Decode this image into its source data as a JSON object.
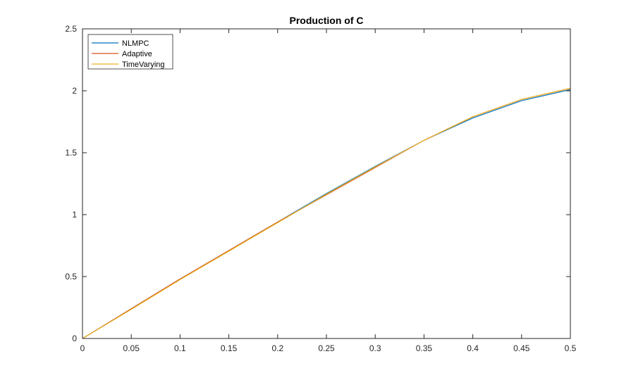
{
  "chart_data": {
    "type": "line",
    "title": "Production of C",
    "xlabel": "",
    "ylabel": "",
    "xlim": [
      0,
      0.5
    ],
    "ylim": [
      0,
      2.5
    ],
    "xticks": [
      0,
      0.05,
      0.1,
      0.15,
      0.2,
      0.25,
      0.3,
      0.35,
      0.4,
      0.45,
      0.5
    ],
    "xtick_labels": [
      "0",
      "0.05",
      "0.1",
      "0.15",
      "0.2",
      "0.25",
      "0.3",
      "0.35",
      "0.4",
      "0.45",
      "0.5"
    ],
    "yticks": [
      0,
      0.5,
      1,
      1.5,
      2,
      2.5
    ],
    "ytick_labels": [
      "0",
      "0.5",
      "1",
      "1.5",
      "2",
      "2.5"
    ],
    "grid": false,
    "legend_position": "top-left",
    "x": [
      0,
      0.05,
      0.1,
      0.15,
      0.2,
      0.25,
      0.3,
      0.35,
      0.4,
      0.45,
      0.5
    ],
    "series": [
      {
        "name": "NLMPC",
        "color": "#0072BD",
        "values": [
          0,
          0.24,
          0.48,
          0.71,
          0.94,
          1.17,
          1.39,
          1.6,
          1.78,
          1.92,
          2.01
        ]
      },
      {
        "name": "Adaptive",
        "color": "#D95319",
        "values": [
          0,
          0.24,
          0.48,
          0.71,
          0.94,
          1.16,
          1.38,
          1.6,
          1.79,
          1.93,
          2.02
        ]
      },
      {
        "name": "TimeVarying",
        "color": "#EDB120",
        "values": [
          0,
          0.235,
          0.475,
          0.705,
          0.935,
          1.165,
          1.385,
          1.6,
          1.79,
          1.93,
          2.02
        ]
      }
    ]
  }
}
